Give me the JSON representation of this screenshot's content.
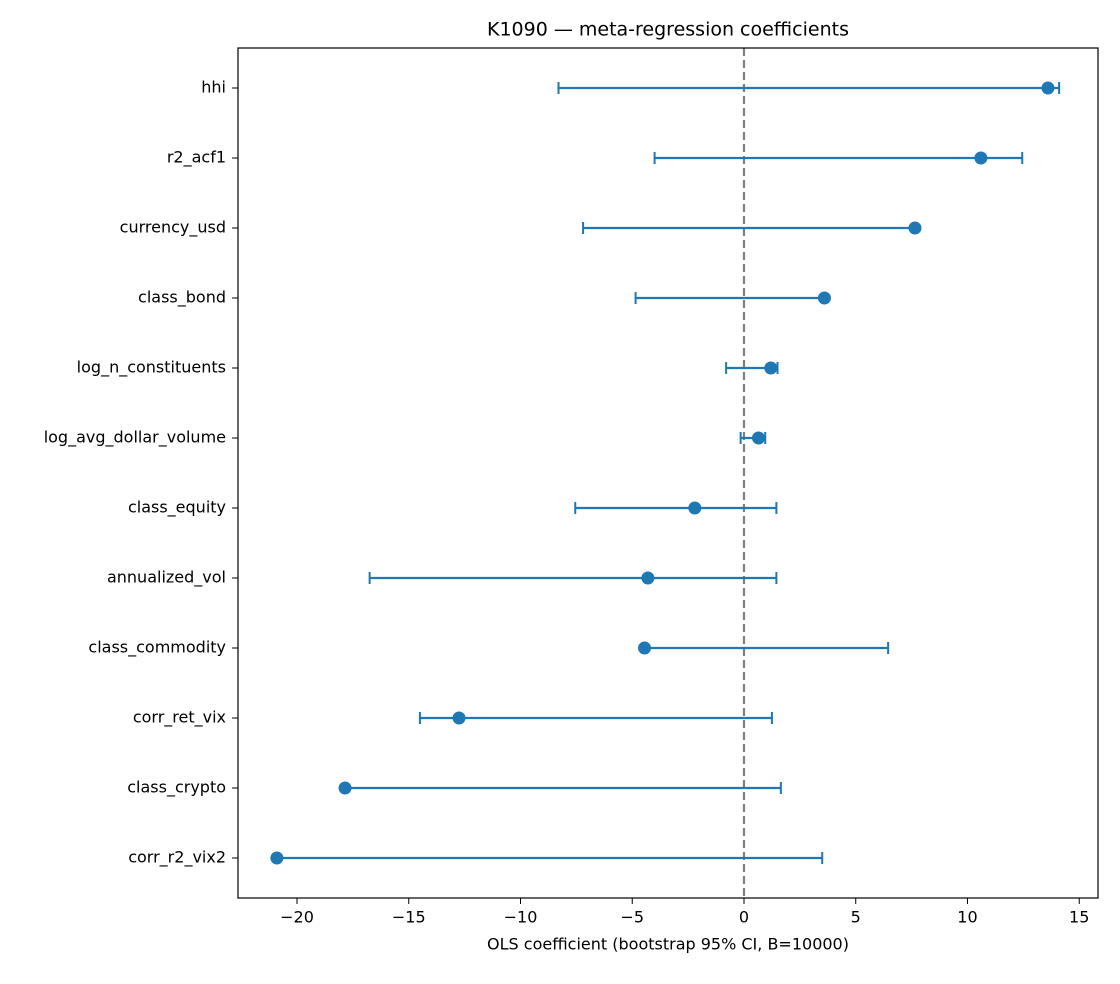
{
  "chart_data": {
    "type": "coefplot",
    "title": "K1090 — meta-regression coefficients",
    "x_label": "OLS coefficient (bootstrap 95% CI, B=10000)",
    "categories": [
      "hhi",
      "r2_acf1",
      "currency_usd",
      "class_bond",
      "log_n_constituents",
      "log_avg_dollar_volume",
      "class_equity",
      "annualized_vol",
      "class_commodity",
      "corr_ret_vix",
      "class_crypto",
      "corr_r2_vix2"
    ],
    "values": [
      13.6,
      10.6,
      7.65,
      3.6,
      1.2,
      0.65,
      -2.2,
      -4.3,
      -4.45,
      -12.75,
      -17.85,
      -20.9
    ],
    "ci_low": [
      -8.3,
      -4.0,
      -7.2,
      -4.85,
      -0.8,
      -0.15,
      -7.55,
      -16.75,
      -4.45,
      -14.5,
      -17.85,
      -20.9
    ],
    "ci_high": [
      14.1,
      12.45,
      7.65,
      3.6,
      1.5,
      0.95,
      1.45,
      1.45,
      6.45,
      1.25,
      1.65,
      3.5
    ],
    "color": "#1f77b4",
    "reference_line": 0,
    "xlim": [
      -22.64,
      15.84
    ],
    "xticks": [
      {
        "value": -20,
        "label": "−20"
      },
      {
        "value": -15,
        "label": "−15"
      },
      {
        "value": -10,
        "label": "−10"
      },
      {
        "value": -5,
        "label": "−5"
      },
      0,
      5,
      10,
      15
    ]
  }
}
